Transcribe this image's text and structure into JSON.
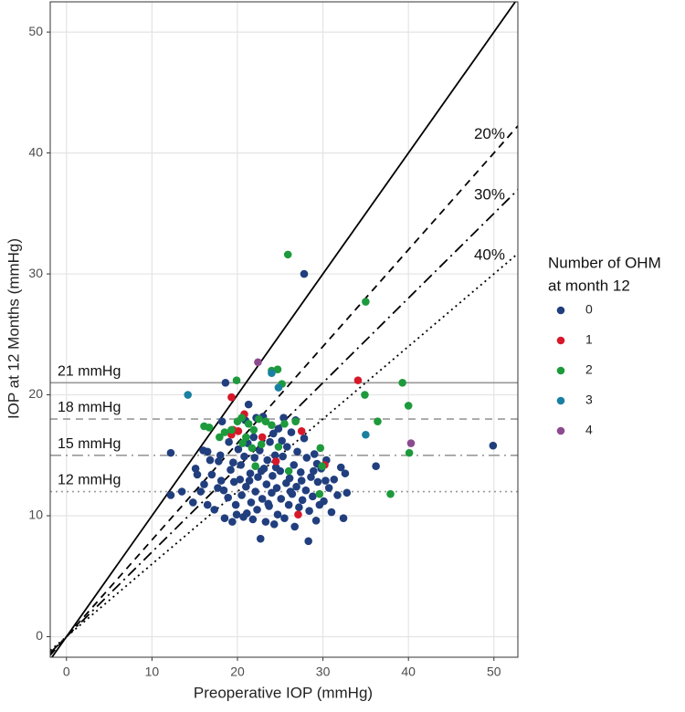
{
  "chart_data": {
    "type": "scatter",
    "x_label": "Preoperative IOP (mmHg)",
    "y_label": "IOP at 12 Months (mmHg)",
    "xlim": [
      -1.9,
      52.8
    ],
    "ylim": [
      -1.7,
      52.5
    ],
    "xticks": [
      0,
      10,
      20,
      30,
      40,
      50
    ],
    "yticks": [
      0,
      10,
      20,
      30,
      40,
      50
    ],
    "grid": true,
    "legend_title": [
      "Number of OHM",
      "at month 12"
    ],
    "legend_position": "right",
    "reference_lines": [
      {
        "slope": 1,
        "style": "solid"
      },
      {
        "slope": 0.8,
        "label": "20%",
        "style": "dashed"
      },
      {
        "slope": 0.7,
        "label": "30%",
        "style": "dotdash"
      },
      {
        "slope": 0.6,
        "label": "40%",
        "style": "dotted"
      }
    ],
    "threshold_lines": [
      {
        "value": 21,
        "label": "21 mmHg",
        "style": "solid"
      },
      {
        "value": 18,
        "label": "18 mmHg",
        "style": "dashed"
      },
      {
        "value": 15,
        "label": "15 mmHg",
        "style": "dotdash"
      },
      {
        "value": 12,
        "label": "12 mmHg",
        "style": "dotted"
      }
    ],
    "series": [
      {
        "name": "0",
        "color": "#213f7e",
        "x": [
          15.1,
          15.3,
          14.8,
          16.0,
          16.5,
          16.8,
          16.1,
          17.3,
          17.7,
          17.8,
          18.0,
          18.2,
          18.4,
          18.5,
          18.9,
          19.2,
          19.5,
          19.6,
          19.8,
          19.9,
          20.1,
          20.3,
          20.5,
          20.7,
          20.8,
          21.0,
          21.2,
          21.3,
          21.5,
          21.6,
          21.8,
          22.0,
          22.1,
          22.3,
          22.4,
          22.6,
          22.7,
          22.9,
          23.0,
          23.1,
          23.3,
          23.4,
          23.5,
          23.7,
          23.8,
          24.0,
          24.1,
          24.3,
          24.4,
          24.6,
          24.7,
          24.8,
          25.0,
          25.1,
          25.3,
          25.4,
          25.5,
          25.7,
          25.8,
          26.0,
          26.1,
          26.3,
          26.4,
          26.6,
          26.7,
          26.9,
          27.0,
          27.2,
          27.4,
          27.6,
          27.8,
          28.0,
          28.1,
          28.3,
          28.4,
          28.6,
          28.8,
          29.0,
          29.2,
          29.4,
          29.6,
          29.8,
          30.1,
          30.4,
          30.7,
          31.0,
          31.3,
          31.7,
          32.1,
          32.4,
          32.6,
          32.8,
          16.5,
          15.7,
          17.0,
          18.1,
          19.0,
          20.9,
          21.9,
          22.2,
          24.2,
          26.8,
          25.2,
          21.4,
          23.6,
          22.8,
          24.5,
          20.4,
          19.4,
          21.1,
          26.2,
          27.5,
          28.9,
          29.3,
          30.3,
          12.2,
          12.2,
          13.5,
          18.6,
          27.8,
          49.9,
          36.2
        ],
        "values": [
          13.9,
          13.4,
          11.1,
          15.4,
          15.3,
          14.6,
          12.6,
          10.5,
          12.3,
          14.5,
          15.0,
          17.8,
          12.1,
          9.8,
          11.5,
          13.8,
          14.4,
          12.8,
          10.9,
          10.1,
          15.5,
          13.0,
          11.7,
          9.9,
          14.9,
          12.4,
          16.0,
          19.2,
          13.5,
          11.1,
          9.7,
          14.8,
          12.0,
          10.5,
          13.2,
          15.4,
          8.1,
          11.4,
          18.2,
          13.9,
          9.5,
          12.6,
          14.6,
          10.8,
          16.1,
          11.9,
          13.3,
          9.3,
          15.0,
          12.3,
          10.1,
          17.2,
          13.7,
          11.4,
          14.9,
          18.1,
          9.8,
          12.7,
          15.7,
          10.9,
          13.1,
          16.9,
          11.8,
          14.2,
          9.1,
          12.4,
          15.3,
          10.7,
          13.6,
          11.3,
          16.4,
          12.1,
          14.8,
          7.9,
          10.4,
          13.2,
          11.6,
          15.1,
          9.6,
          12.8,
          10.9,
          13.9,
          11.2,
          14.6,
          12.3,
          10.3,
          13.0,
          11.7,
          14.0,
          9.8,
          13.5,
          11.9,
          10.9,
          12.0,
          13.4,
          12.9,
          16.1,
          17.9,
          16.5,
          18.1,
          16.8,
          17.9,
          16.2,
          12.9,
          11.0,
          13.7,
          14.0,
          14.2,
          9.5,
          10.2,
          12.0,
          12.9,
          13.7,
          14.3,
          12.9,
          15.2,
          11.7,
          12.0,
          21.0,
          30.0,
          15.8,
          14.1
        ]
      },
      {
        "name": "1",
        "color": "#d7182a",
        "x": [
          19.3,
          20.8,
          19.5,
          20.1,
          19.3,
          27.5,
          34.1,
          24.5,
          27.1,
          22.9,
          30.2
        ],
        "values": [
          19.8,
          18.4,
          17.1,
          17.0,
          16.7,
          17.0,
          21.2,
          14.5,
          10.1,
          16.5,
          14.2
        ]
      },
      {
        "name": "2",
        "color": "#1d9a3c",
        "x": [
          25.9,
          35.0,
          24.7,
          24.0,
          25.2,
          19.9,
          39.3,
          34.9,
          40.0,
          36.4,
          40.1,
          37.9,
          29.7,
          29.9,
          26.8,
          25.5,
          20.0,
          20.5,
          21.3,
          21.9,
          22.5,
          23.3,
          24.0,
          17.9,
          18.5,
          16.1,
          16.7,
          21.0,
          21.7,
          20.6,
          22.8,
          24.8,
          22.1,
          26.0,
          29.6,
          19.3
        ],
        "values": [
          31.6,
          27.7,
          22.1,
          22.0,
          20.9,
          21.2,
          21.0,
          20.0,
          19.1,
          17.8,
          15.2,
          11.8,
          15.6,
          14.1,
          17.8,
          17.6,
          17.8,
          18.1,
          17.6,
          17.1,
          18.0,
          17.8,
          17.5,
          16.5,
          16.9,
          17.4,
          17.3,
          16.5,
          15.6,
          16.0,
          15.9,
          15.7,
          14.1,
          13.7,
          11.8,
          17.1
        ]
      },
      {
        "name": "3",
        "color": "#1a80a2",
        "x": [
          14.2,
          24.0,
          24.8,
          35.0
        ],
        "values": [
          20.0,
          21.8,
          20.6,
          16.7
        ]
      },
      {
        "name": "4",
        "color": "#8c4a8f",
        "x": [
          22.4,
          40.3
        ],
        "values": [
          22.7,
          16.0
        ]
      }
    ]
  }
}
